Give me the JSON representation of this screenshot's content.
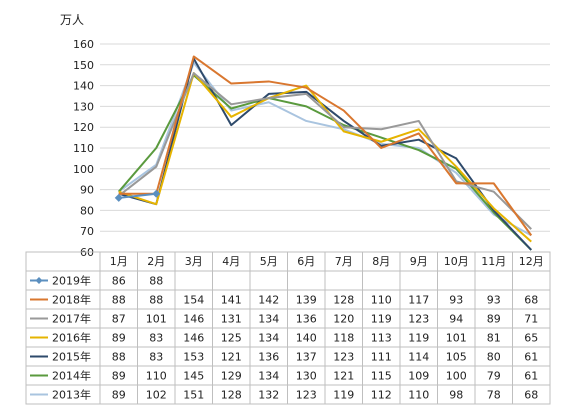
{
  "chart_data": {
    "type": "line",
    "unit_label": "万人",
    "categories": [
      "1月",
      "2月",
      "3月",
      "4月",
      "5月",
      "6月",
      "7月",
      "8月",
      "9月",
      "10月",
      "11月",
      "12月"
    ],
    "ylim": [
      60,
      160
    ],
    "yticks": [
      60,
      70,
      80,
      90,
      100,
      110,
      120,
      130,
      140,
      150,
      160
    ],
    "grid": true,
    "legend": "data-table",
    "series": [
      {
        "name": "2019年",
        "color": "#5b8fbf",
        "marker": "diamond",
        "values": [
          86,
          88,
          null,
          null,
          null,
          null,
          null,
          null,
          null,
          null,
          null,
          null
        ]
      },
      {
        "name": "2018年",
        "color": "#d9772f",
        "marker": "none",
        "values": [
          88,
          88,
          154,
          141,
          142,
          139,
          128,
          110,
          117,
          93,
          93,
          68
        ]
      },
      {
        "name": "2017年",
        "color": "#999999",
        "marker": "none",
        "values": [
          87,
          101,
          146,
          131,
          134,
          136,
          120,
          119,
          123,
          94,
          89,
          71
        ]
      },
      {
        "name": "2016年",
        "color": "#e6b400",
        "marker": "none",
        "values": [
          89,
          83,
          146,
          125,
          134,
          140,
          118,
          113,
          119,
          101,
          81,
          65
        ]
      },
      {
        "name": "2015年",
        "color": "#2e4a6b",
        "marker": "none",
        "values": [
          88,
          83,
          153,
          121,
          136,
          137,
          123,
          111,
          114,
          105,
          80,
          61
        ]
      },
      {
        "name": "2014年",
        "color": "#5a9a3e",
        "marker": "none",
        "values": [
          89,
          110,
          145,
          129,
          134,
          130,
          121,
          115,
          109,
          100,
          79,
          61
        ]
      },
      {
        "name": "2013年",
        "color": "#a9c4df",
        "marker": "none",
        "values": [
          89,
          102,
          151,
          128,
          132,
          123,
          119,
          112,
          110,
          98,
          78,
          68
        ]
      }
    ]
  }
}
